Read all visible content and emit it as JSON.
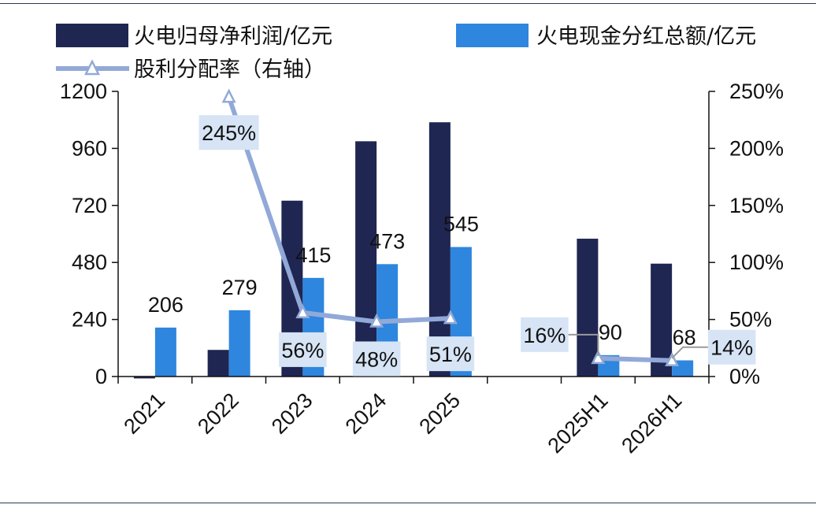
{
  "chart_data": {
    "type": "bar",
    "categories": [
      "2021",
      "2022",
      "2023",
      "2024",
      "2025",
      "",
      "2025H1",
      "2026H1"
    ],
    "series": [
      {
        "name": "火电归母净利润/亿元",
        "kind": "bar",
        "axis": "left",
        "color": "#1f2652",
        "values": [
          -8,
          112,
          740,
          990,
          1070,
          null,
          580,
          475
        ]
      },
      {
        "name": "火电现金分红总额/亿元",
        "kind": "bar",
        "axis": "left",
        "color": "#2e86de",
        "values": [
          206,
          279,
          415,
          473,
          545,
          null,
          90,
          68
        ],
        "data_labels": [
          "206",
          "279",
          "415",
          "473",
          "545",
          "",
          "90",
          "68"
        ]
      },
      {
        "name": "股利分配率（右轴）",
        "kind": "line",
        "axis": "right",
        "color": "#92a9d8",
        "marker": "triangle",
        "values": [
          null,
          245,
          56,
          48,
          51,
          null,
          16,
          14
        ],
        "data_labels": [
          "",
          "245%",
          "56%",
          "48%",
          "51%",
          "",
          "16%",
          "14%"
        ]
      }
    ],
    "y_left": {
      "min": 0,
      "max": 1200,
      "ticks": [
        "0",
        "240",
        "480",
        "720",
        "960",
        "1200"
      ]
    },
    "y_right": {
      "min": 0,
      "max": 250,
      "ticks": [
        "0%",
        "50%",
        "100%",
        "150%",
        "200%",
        "250%"
      ]
    },
    "title": "",
    "xlabel": "",
    "ylabel": "",
    "legend_position": "top",
    "grid": false,
    "label_box_color": "#d6e4f5"
  }
}
